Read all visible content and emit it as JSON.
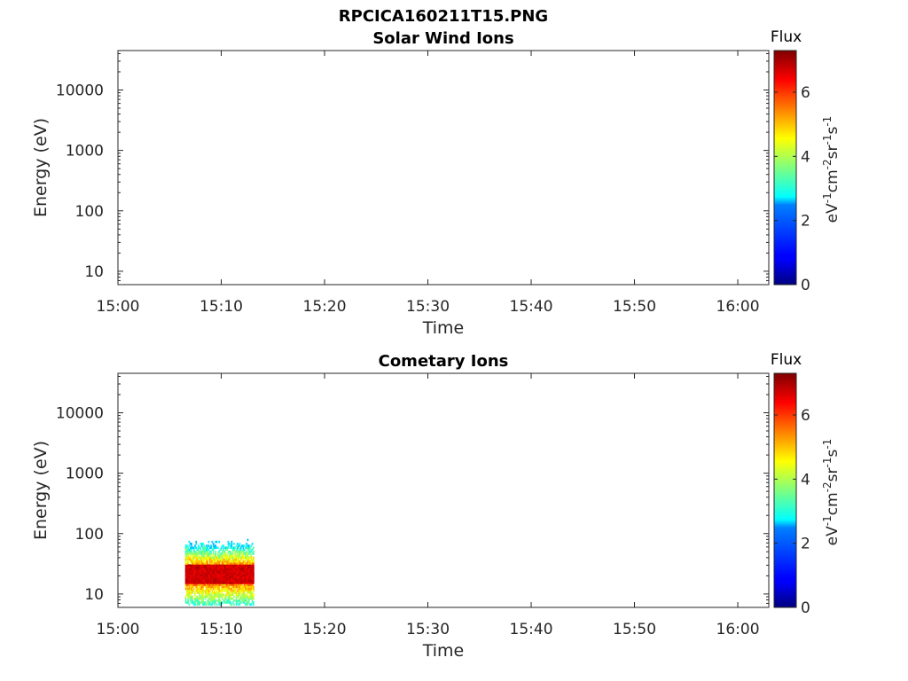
{
  "figure": {
    "filename": "RPCICA160211T15.PNG"
  },
  "chart_data": [
    {
      "type": "heatmap",
      "title": "Solar Wind Ions",
      "xlabel": "Time",
      "ylabel": "Energy (eV)",
      "x_ticks": [
        "15:00",
        "15:10",
        "15:20",
        "15:30",
        "15:40",
        "15:50",
        "16:00"
      ],
      "xlim": [
        "15:00",
        "16:03"
      ],
      "y_scale": "log",
      "y_ticks": [
        10,
        100,
        1000,
        10000
      ],
      "y_tick_labels": [
        "10",
        "100",
        "1000",
        "10000"
      ],
      "ylim": [
        6,
        45000
      ],
      "colorbar": {
        "title": "Flux",
        "label": "eV-1cm-2sr-1s-1",
        "label_parts": [
          "eV",
          "-1",
          "cm",
          "-2",
          "sr",
          "-1",
          "s",
          "-1"
        ],
        "range": [
          0,
          7.3
        ],
        "ticks": [
          "0",
          "2",
          "4",
          "6"
        ],
        "colormap": "jet"
      },
      "data_blocks": []
    },
    {
      "type": "heatmap",
      "title": "Cometary Ions",
      "xlabel": "Time",
      "ylabel": "Energy (eV)",
      "x_ticks": [
        "15:00",
        "15:10",
        "15:20",
        "15:30",
        "15:40",
        "15:50",
        "16:00"
      ],
      "xlim": [
        "15:00",
        "16:03"
      ],
      "y_scale": "log",
      "y_ticks": [
        10,
        100,
        1000,
        10000
      ],
      "y_tick_labels": [
        "10",
        "100",
        "1000",
        "10000"
      ],
      "ylim": [
        6,
        45000
      ],
      "colorbar": {
        "title": "Flux",
        "label": "eV-1cm-2sr-1s-1",
        "label_parts": [
          "eV",
          "-1",
          "cm",
          "-2",
          "sr",
          "-1",
          "s",
          "-1"
        ],
        "range": [
          0,
          7.3
        ],
        "ticks": [
          "0",
          "2",
          "4",
          "6"
        ],
        "colormap": "jet"
      },
      "data_blocks": [
        {
          "t_start": "15:06:30",
          "t_end": "15:13:10",
          "e_low": 6.5,
          "e_high": 82,
          "flux_peak": 7.0,
          "flux_core_energy": [
            15,
            30
          ]
        }
      ]
    }
  ]
}
